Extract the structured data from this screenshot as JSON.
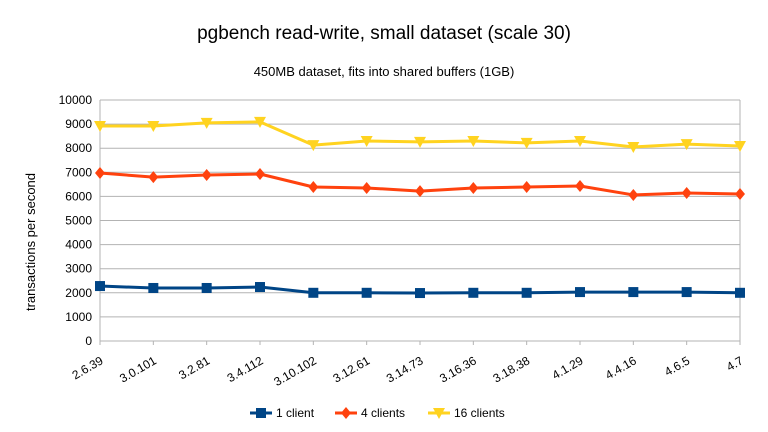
{
  "chart_data": {
    "type": "line",
    "title": "pgbench read-write, small dataset (scale 30)",
    "subtitle": "450MB dataset, fits into shared buffers (1GB)",
    "xlabel": "",
    "ylabel": "transactions per second",
    "ylim": [
      0,
      10000
    ],
    "yticks": [
      0,
      1000,
      2000,
      3000,
      4000,
      5000,
      6000,
      7000,
      8000,
      9000,
      10000
    ],
    "grid": true,
    "legend": "bottom",
    "categories": [
      "2.6.39",
      "3.0.101",
      "3.2.81",
      "3.4.112",
      "3.10.102",
      "3.12.61",
      "3.14.73",
      "3.16.36",
      "3.18.38",
      "4.1.29",
      "4.4.16",
      "4.6.5",
      "4.7"
    ],
    "series": [
      {
        "name": "1 client",
        "color": "#004586",
        "marker": "square",
        "values": [
          2280,
          2200,
          2200,
          2240,
          2000,
          2000,
          1990,
          2000,
          2000,
          2030,
          2030,
          2030,
          2000
        ]
      },
      {
        "name": "4 clients",
        "color": "#ff420e",
        "marker": "diamond",
        "values": [
          6970,
          6800,
          6890,
          6930,
          6390,
          6350,
          6220,
          6350,
          6390,
          6430,
          6060,
          6140,
          6100
        ]
      },
      {
        "name": "16 clients",
        "color": "#ffd320",
        "marker": "triangle-down",
        "values": [
          8920,
          8920,
          9050,
          9090,
          8130,
          8300,
          8260,
          8300,
          8220,
          8300,
          8050,
          8170,
          8090
        ]
      }
    ]
  }
}
